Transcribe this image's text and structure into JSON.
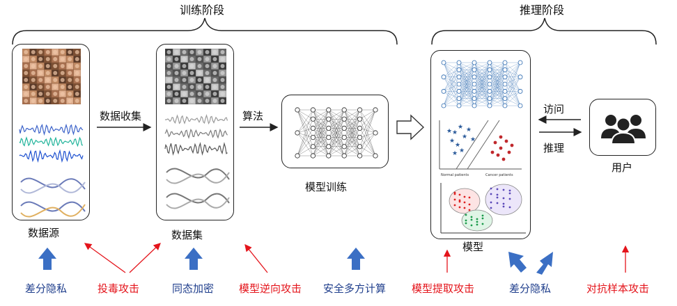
{
  "stages": {
    "training": "训练阶段",
    "inference": "推理阶段"
  },
  "labels": {
    "data_source": "数据源",
    "data_collection": "数据收集",
    "dataset": "数据集",
    "algorithm": "算法",
    "model_training": "模型训练",
    "model": "模型",
    "access": "访问",
    "inference": "推理",
    "user": "用户"
  },
  "threats": [
    {
      "text": "差分隐私",
      "kind": "defense"
    },
    {
      "text": "投毒攻击",
      "kind": "attack"
    },
    {
      "text": "同态加密",
      "kind": "defense"
    },
    {
      "text": "模型逆向攻击",
      "kind": "attack"
    },
    {
      "text": "安全多方计算",
      "kind": "defense"
    },
    {
      "text": "模型提取攻击",
      "kind": "attack"
    },
    {
      "text": "差分隐私",
      "kind": "defense"
    },
    {
      "text": "对抗样本攻击",
      "kind": "attack"
    }
  ],
  "plot_labels": {
    "normal": "Normal patients",
    "cancer": "Cancer patients"
  },
  "colors": {
    "defense": "#1f3e8c",
    "attack": "#e4141b",
    "defense_arrow": "#3b6fc4",
    "network": "#2e6bb0"
  }
}
